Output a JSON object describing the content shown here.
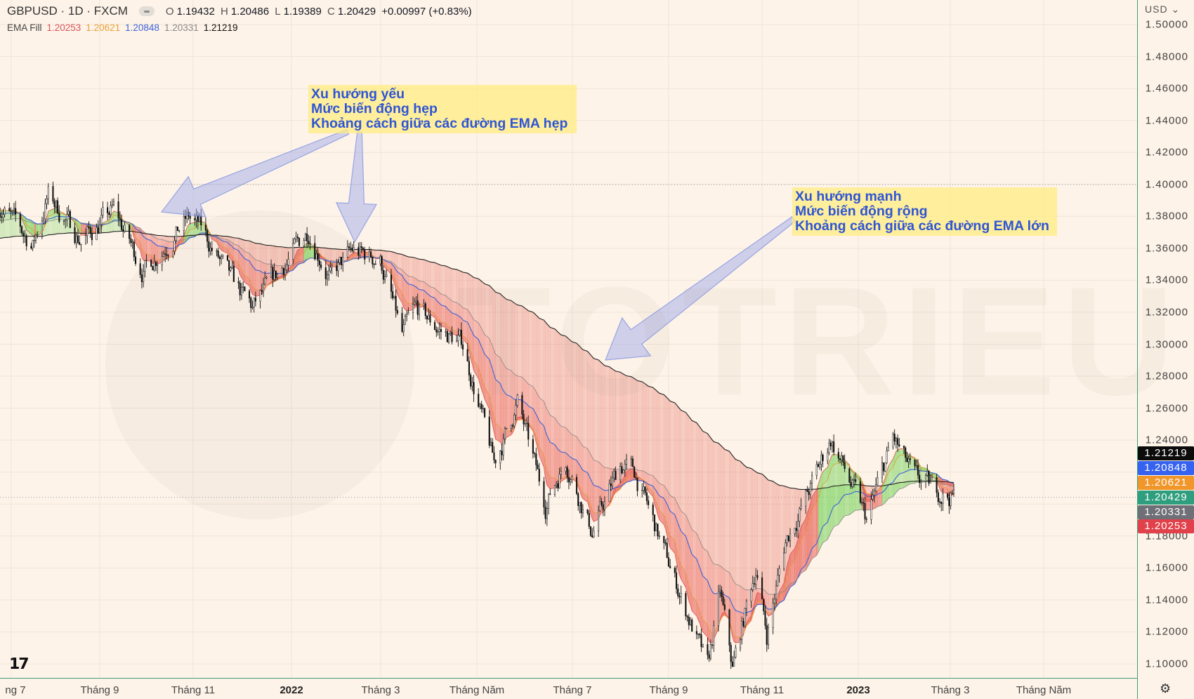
{
  "header": {
    "symbol": "GBPUSD · 1D · FXCM",
    "open_label": "O",
    "open": "1.19432",
    "high_label": "H",
    "high": "1.20486",
    "low_label": "L",
    "low": "1.19389",
    "close_label": "C",
    "close": "1.20429",
    "change": "+0.00997 (+0.83%)"
  },
  "indicator": {
    "name": "EMA Fill",
    "values": [
      "1.20253",
      "1.20621",
      "1.20848",
      "1.20331",
      "1.21219"
    ],
    "colors": [
      "#d9545a",
      "#e8a13a",
      "#3d64d8",
      "#8a8a8a",
      "#111111"
    ]
  },
  "price_axis": {
    "currency": "USD",
    "currency_icon": "chevron-down-icon",
    "labels": [
      "1.50000",
      "1.48000",
      "1.46000",
      "1.44000",
      "1.42000",
      "1.40000",
      "1.38000",
      "1.36000",
      "1.34000",
      "1.32000",
      "1.30000",
      "1.28000",
      "1.26000",
      "1.24000",
      "1.18000",
      "1.16000",
      "1.14000",
      "1.12000",
      "1.10000"
    ],
    "tags": [
      {
        "value": "1.21219",
        "color": "#0b0b0b"
      },
      {
        "value": "1.20848",
        "color": "#3562f0"
      },
      {
        "value": "1.20621",
        "color": "#f0962a"
      },
      {
        "value": "1.20429",
        "color": "#2e9e7e"
      },
      {
        "value": "1.20331",
        "color": "#6f6f78"
      },
      {
        "value": "1.20253",
        "color": "#e0414a"
      }
    ]
  },
  "time_axis": {
    "labels": [
      {
        "t": "ng 7",
        "b": false
      },
      {
        "t": "Tháng 9",
        "b": false
      },
      {
        "t": "Tháng 11",
        "b": false
      },
      {
        "t": "2022",
        "b": true
      },
      {
        "t": "Tháng 3",
        "b": false
      },
      {
        "t": "Tháng Năm",
        "b": false
      },
      {
        "t": "Tháng 7",
        "b": false
      },
      {
        "t": "Tháng 9",
        "b": false
      },
      {
        "t": "Tháng 11",
        "b": false
      },
      {
        "t": "2023",
        "b": true
      },
      {
        "t": "Tháng 3",
        "b": false
      },
      {
        "t": "Tháng Năm",
        "b": false
      }
    ]
  },
  "annotations": [
    {
      "lines": [
        "Xu hướng yếu",
        "Mức biến động hẹp",
        "Khoảng cách giữa các đường EMA hẹp"
      ]
    },
    {
      "lines": [
        "Xu hướng mạnh",
        "Mức biến động rộng",
        "Khoảng cách giữa các đường EMA lớn"
      ]
    }
  ],
  "watermark": "TOTRIEU",
  "logo": "TV",
  "chart_data": {
    "type": "candlestick",
    "symbol": "GBPUSD",
    "interval": "1D",
    "ylim": [
      1.09,
      1.5
    ],
    "xlim": [
      "2021-06-28",
      "2023-05-31"
    ],
    "reference_lines": [
      1.4,
      1.20429
    ],
    "approx_close_path": [
      [
        "2021-06-28",
        1.388
      ],
      [
        "2021-07-20",
        1.362
      ],
      [
        "2021-07-30",
        1.393
      ],
      [
        "2021-08-20",
        1.365
      ],
      [
        "2021-09-10",
        1.384
      ],
      [
        "2021-09-29",
        1.346
      ],
      [
        "2021-10-28",
        1.379
      ],
      [
        "2021-11-05",
        1.372
      ],
      [
        "2021-11-22",
        1.343
      ],
      [
        "2021-12-08",
        1.322
      ],
      [
        "2021-12-31",
        1.353
      ],
      [
        "2022-01-13",
        1.372
      ],
      [
        "2022-01-27",
        1.341
      ],
      [
        "2022-02-10",
        1.358
      ],
      [
        "2022-02-28",
        1.353
      ],
      [
        "2022-03-14",
        1.305
      ],
      [
        "2022-03-23",
        1.322
      ],
      [
        "2022-04-08",
        1.308
      ],
      [
        "2022-04-22",
        1.3
      ],
      [
        "2022-05-12",
        1.225
      ],
      [
        "2022-05-27",
        1.263
      ],
      [
        "2022-06-14",
        1.2
      ],
      [
        "2022-06-27",
        1.228
      ],
      [
        "2022-07-14",
        1.182
      ],
      [
        "2022-08-01",
        1.225
      ],
      [
        "2022-08-10",
        1.22
      ],
      [
        "2022-09-01",
        1.163
      ],
      [
        "2022-09-26",
        1.097
      ],
      [
        "2022-10-04",
        1.144
      ],
      [
        "2022-10-12",
        1.097
      ],
      [
        "2022-10-27",
        1.161
      ],
      [
        "2022-11-03",
        1.118
      ],
      [
        "2022-11-15",
        1.177
      ],
      [
        "2022-12-01",
        1.21
      ],
      [
        "2022-12-14",
        1.241
      ],
      [
        "2023-01-06",
        1.19
      ],
      [
        "2023-01-23",
        1.241
      ],
      [
        "2023-02-06",
        1.215
      ],
      [
        "2023-03-03",
        1.204
      ]
    ],
    "ema_last": [
      1.20253,
      1.20621,
      1.20848,
      1.20331,
      1.21219
    ]
  }
}
